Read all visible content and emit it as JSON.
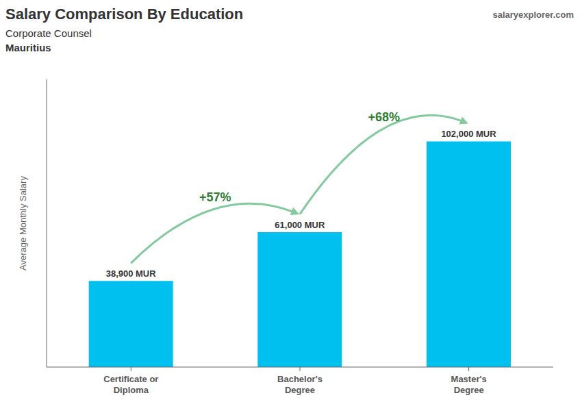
{
  "chart_data": {
    "type": "bar",
    "title": "Salary Comparison By Education",
    "subtitle": [
      "Corporate Counsel",
      "Mauritius"
    ],
    "watermark": "salaryexplorer.com",
    "ylabel": "Average Monthly Salary",
    "categories": [
      "Certificate or\nDiploma",
      "Bachelor's\nDegree",
      "Master's\nDegree"
    ],
    "values": [
      38900,
      61000,
      102000
    ],
    "value_labels": [
      "38,900 MUR",
      "61,000 MUR",
      "102,000 MUR"
    ],
    "data_labels": true,
    "annotations": [
      "+57%",
      "+68%"
    ],
    "color": "#00C0F0",
    "ylim": [
      0,
      130000
    ],
    "tick_labels": "x",
    "grid": false
  }
}
